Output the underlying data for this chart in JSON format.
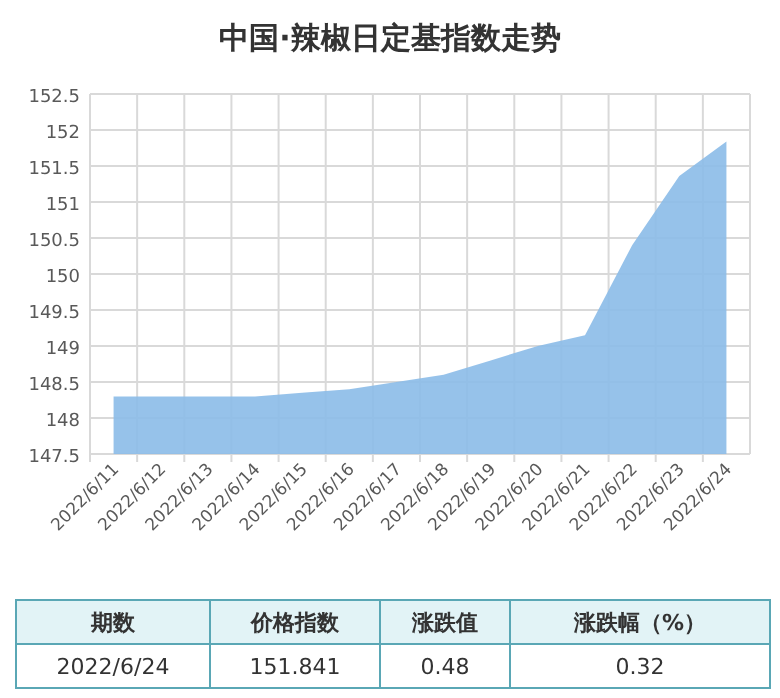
{
  "chart_data": {
    "type": "area",
    "title": "中国·辣椒日定基指数走势",
    "categories": [
      "2022/6/11",
      "2022/6/12",
      "2022/6/13",
      "2022/6/14",
      "2022/6/15",
      "2022/6/16",
      "2022/6/17",
      "2022/6/18",
      "2022/6/19",
      "2022/6/20",
      "2022/6/21",
      "2022/6/22",
      "2022/6/23",
      "2022/6/24"
    ],
    "series": [
      {
        "color": "#8bbbe8",
        "values": [
          148.3,
          148.3,
          148.3,
          148.3,
          148.35,
          148.4,
          148.5,
          148.6,
          148.8,
          149.0,
          149.15,
          150.4,
          151.36,
          151.841
        ]
      }
    ],
    "ylim": [
      147.5,
      152.5
    ],
    "yticks": [
      147.5,
      148,
      148.5,
      149,
      149.5,
      150,
      150.5,
      151,
      151.5,
      152,
      152.5
    ],
    "grid": true,
    "annotations": [
      "期数",
      "价格指数",
      "涨跌值",
      "涨跌幅（%）",
      "2022/6/24",
      "151.841",
      "0.48",
      "0.32"
    ]
  }
}
